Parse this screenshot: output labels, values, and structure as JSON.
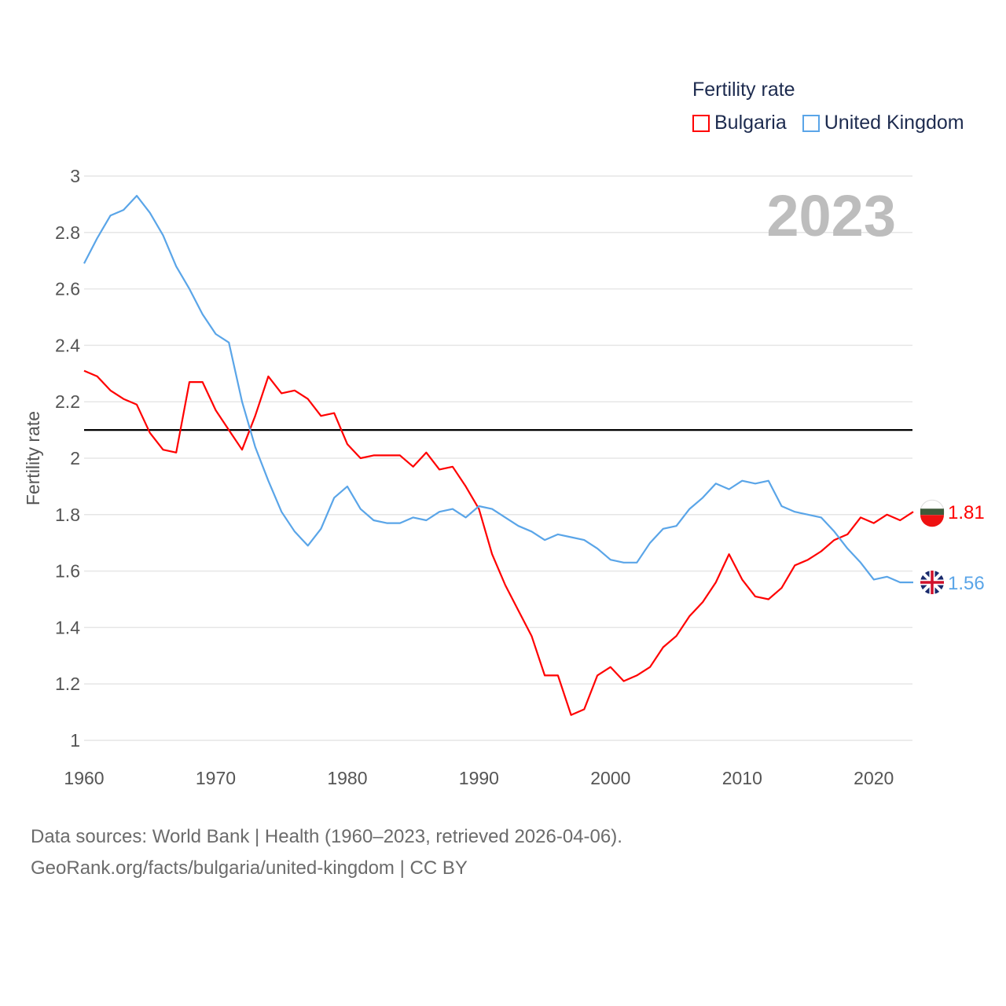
{
  "chart_data": {
    "type": "line",
    "title": "",
    "ylabel": "Fertility rate",
    "xlabel": "",
    "ylim": [
      1,
      3
    ],
    "xlim": [
      1960,
      2023
    ],
    "yticks": [
      "1",
      "1.2",
      "1.4",
      "1.6",
      "1.8",
      "2",
      "2.2",
      "2.4",
      "2.6",
      "2.8",
      "3"
    ],
    "xticks": [
      "1960",
      "1970",
      "1980",
      "1990",
      "2000",
      "2010",
      "2020"
    ],
    "year_label": "2023",
    "legend_title": "Fertility rate",
    "legend_position": "top-right",
    "reference_line": 2.1,
    "x": [
      1960,
      1961,
      1962,
      1963,
      1964,
      1965,
      1966,
      1967,
      1968,
      1969,
      1970,
      1971,
      1972,
      1973,
      1974,
      1975,
      1976,
      1977,
      1978,
      1979,
      1980,
      1981,
      1982,
      1983,
      1984,
      1985,
      1986,
      1987,
      1988,
      1989,
      1990,
      1991,
      1992,
      1993,
      1994,
      1995,
      1996,
      1997,
      1998,
      1999,
      2000,
      2001,
      2002,
      2003,
      2004,
      2005,
      2006,
      2007,
      2008,
      2009,
      2010,
      2011,
      2012,
      2013,
      2014,
      2015,
      2016,
      2017,
      2018,
      2019,
      2020,
      2021,
      2022,
      2023
    ],
    "series": [
      {
        "name": "Bulgaria",
        "color": "#ff0000",
        "end_label": "1.81",
        "values": [
          2.31,
          2.29,
          2.24,
          2.21,
          2.19,
          2.09,
          2.03,
          2.02,
          2.27,
          2.27,
          2.17,
          2.1,
          2.03,
          2.15,
          2.29,
          2.23,
          2.24,
          2.21,
          2.15,
          2.16,
          2.05,
          2.0,
          2.01,
          2.01,
          2.01,
          1.97,
          2.02,
          1.96,
          1.97,
          1.9,
          1.82,
          1.66,
          1.55,
          1.46,
          1.37,
          1.23,
          1.23,
          1.09,
          1.11,
          1.23,
          1.26,
          1.21,
          1.23,
          1.26,
          1.33,
          1.37,
          1.44,
          1.49,
          1.56,
          1.66,
          1.57,
          1.51,
          1.5,
          1.54,
          1.62,
          1.64,
          1.67,
          1.71,
          1.73,
          1.79,
          1.77,
          1.8,
          1.78,
          1.81
        ]
      },
      {
        "name": "United Kingdom",
        "color": "#5aa5e8",
        "end_label": "1.56",
        "values": [
          2.69,
          2.78,
          2.86,
          2.88,
          2.93,
          2.87,
          2.79,
          2.68,
          2.6,
          2.51,
          2.44,
          2.41,
          2.2,
          2.04,
          1.92,
          1.81,
          1.74,
          1.69,
          1.75,
          1.86,
          1.9,
          1.82,
          1.78,
          1.77,
          1.77,
          1.79,
          1.78,
          1.81,
          1.82,
          1.79,
          1.83,
          1.82,
          1.79,
          1.76,
          1.74,
          1.71,
          1.73,
          1.72,
          1.71,
          1.68,
          1.64,
          1.63,
          1.63,
          1.7,
          1.75,
          1.76,
          1.82,
          1.86,
          1.91,
          1.89,
          1.92,
          1.91,
          1.92,
          1.83,
          1.81,
          1.8,
          1.79,
          1.74,
          1.68,
          1.63,
          1.57,
          1.58,
          1.56,
          1.56
        ]
      }
    ]
  },
  "footer": {
    "line1": "Data sources: World Bank | Health (1960–2023, retrieved 2026-04-06).",
    "line2": "GeoRank.org/facts/bulgaria/united-kingdom | CC BY"
  }
}
